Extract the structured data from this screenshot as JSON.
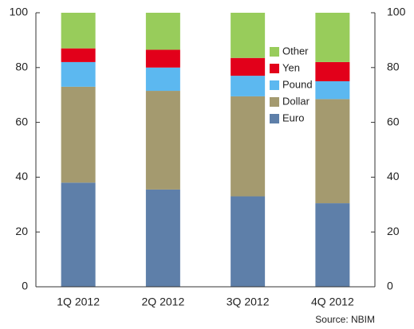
{
  "chart_data": {
    "type": "bar",
    "stacked": true,
    "categories": [
      "1Q 2012",
      "2Q 2012",
      "3Q 2012",
      "4Q 2012"
    ],
    "series": [
      {
        "name": "Euro",
        "color": "#5e7fa9",
        "values": [
          38,
          35.5,
          33,
          30.5
        ]
      },
      {
        "name": "Dollar",
        "color": "#a49a6f",
        "values": [
          35,
          36,
          36.5,
          38
        ]
      },
      {
        "name": "Pound",
        "color": "#5cb8f0",
        "values": [
          9,
          8.5,
          7.5,
          6.5
        ]
      },
      {
        "name": "Yen",
        "color": "#e2001a",
        "values": [
          5,
          6.5,
          6.5,
          7
        ]
      },
      {
        "name": "Other",
        "color": "#98cc5b",
        "values": [
          13,
          13.5,
          16.5,
          18
        ]
      }
    ],
    "ylim": [
      0,
      100
    ],
    "yticks": [
      0,
      20,
      40,
      60,
      80,
      100
    ],
    "y2lim": [
      0,
      100
    ],
    "y2ticks": [
      0,
      20,
      40,
      60,
      80,
      100
    ],
    "legend": "upper right",
    "source": "Source: NBIM"
  }
}
